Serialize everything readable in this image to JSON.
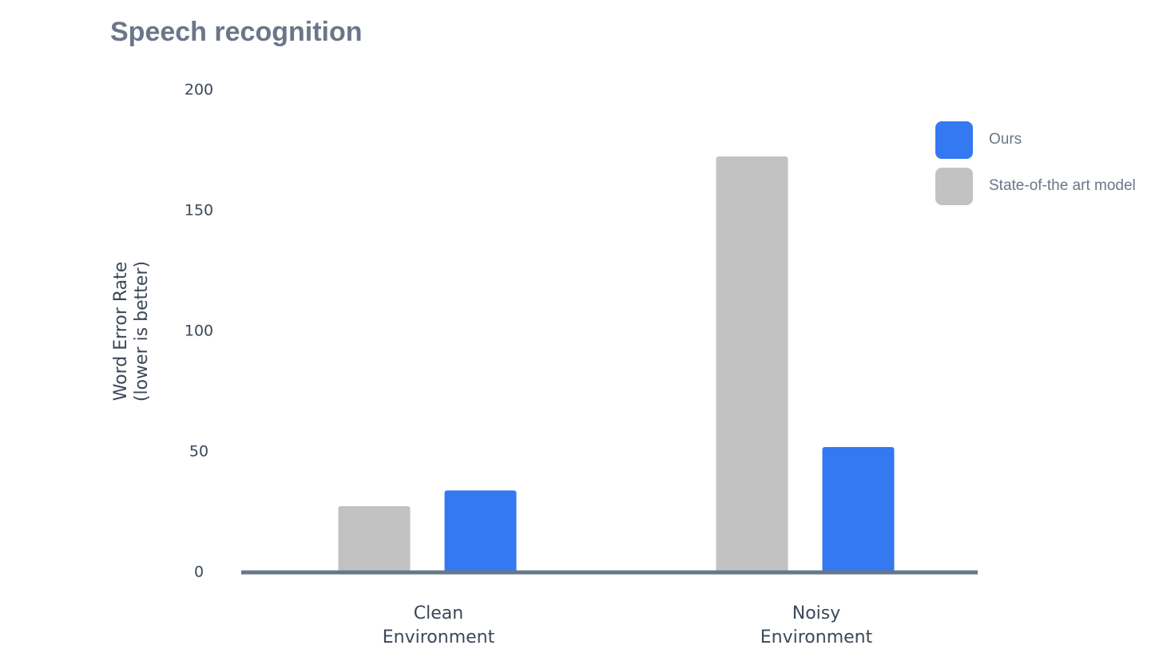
{
  "chart_data": {
    "type": "bar",
    "title": "Speech recognition",
    "ylabel": [
      "Word Error Rate",
      "(lower is better)"
    ],
    "categories": [
      "Clean Environment",
      "Noisy Environment"
    ],
    "series": [
      {
        "name": "State-of-the art model",
        "color": "#c2c2c2",
        "values": [
          27.5,
          172.5
        ]
      },
      {
        "name": "Ours",
        "color": "#3478f2",
        "values": [
          34,
          52
        ]
      }
    ],
    "ylim": [
      0,
      200
    ],
    "yticks": [
      0,
      50,
      100,
      150,
      200
    ],
    "grid": false
  }
}
